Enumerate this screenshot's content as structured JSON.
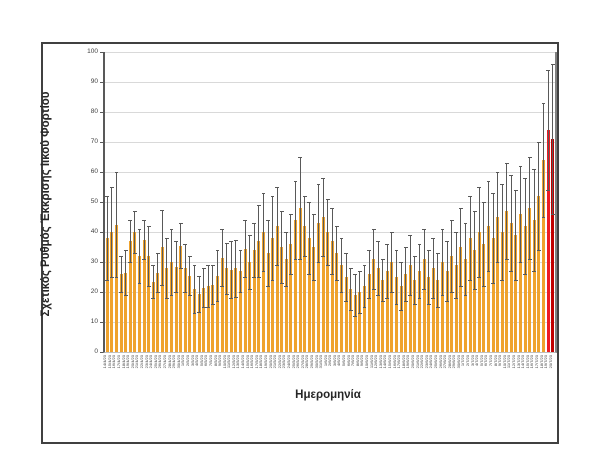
{
  "figure": {
    "background": "#ffffff",
    "border_color": "#404040"
  },
  "chart_data": {
    "type": "bar",
    "title": "",
    "xlabel": "Ημερομηνία",
    "ylabel": "Σχετικός Ρυθμός Έκκρισης Ιικού Φορτίου",
    "ylim": [
      0,
      100
    ],
    "yticks": [
      0,
      10,
      20,
      30,
      40,
      50,
      60,
      70,
      80,
      90,
      100
    ],
    "grid": true,
    "legend": "none",
    "bar_color": "#EFA32E",
    "highlight_colors": [
      "#ED1C24",
      "#C00000"
    ],
    "highlight_last_n": 2,
    "error_bar_color": "#595959",
    "gridline_color": "#d9d9d9",
    "categories": [
      "14/4/20",
      "15/4/20",
      "16/4/20",
      "17/4/20",
      "18/4/20",
      "19/4/20",
      "20/4/20",
      "21/4/20",
      "22/4/20",
      "23/4/20",
      "24/4/20",
      "25/4/20",
      "26/4/20",
      "27/4/20",
      "28/4/20",
      "29/4/20",
      "30/4/20",
      "1/5/20",
      "2/5/20",
      "3/5/20",
      "4/5/20",
      "5/5/20",
      "6/5/20",
      "7/5/20",
      "8/5/20",
      "9/5/20",
      "10/5/20",
      "11/5/20",
      "12/5/20",
      "13/5/20",
      "14/5/20",
      "15/5/20",
      "16/5/20",
      "17/5/20",
      "18/5/20",
      "19/5/20",
      "20/5/20",
      "21/5/20",
      "22/5/20",
      "23/5/20",
      "24/5/20",
      "25/5/20",
      "26/5/20",
      "27/5/20",
      "28/5/20",
      "29/5/20",
      "30/5/20",
      "31/5/20",
      "1/6/20",
      "2/6/20",
      "3/6/20",
      "4/6/20",
      "5/6/20",
      "6/6/20",
      "7/6/20",
      "8/6/20",
      "9/6/20",
      "10/6/20",
      "11/6/20",
      "12/6/20",
      "13/6/20",
      "14/6/20",
      "15/6/20",
      "16/6/20",
      "17/6/20",
      "18/6/20",
      "19/6/20",
      "20/6/20",
      "21/6/20",
      "22/6/20",
      "23/6/20",
      "24/6/20",
      "25/6/20",
      "26/6/20",
      "27/6/20",
      "28/6/20",
      "29/6/20",
      "30/6/20",
      "1/7/20",
      "2/7/20",
      "3/7/20",
      "4/7/20",
      "5/7/20",
      "6/7/20",
      "7/7/20",
      "8/7/20",
      "9/7/20",
      "10/7/20",
      "11/7/20",
      "12/7/20",
      "13/7/20",
      "14/7/20",
      "15/7/20",
      "16/7/20",
      "17/7/20",
      "18/7/20",
      "19/7/20",
      "20/7/20"
    ],
    "series": [
      {
        "name": "Σχετικός Ρυθμός Έκκρισης Ιικού Φορτίου",
        "values": [
          38,
          40,
          42.5,
          26,
          26.5,
          37,
          40,
          32,
          37.5,
          32,
          23.5,
          26.5,
          35,
          28,
          30,
          28.5,
          35.5,
          28,
          25.5,
          21,
          19.5,
          21.5,
          22,
          22.5,
          25.5,
          31.5,
          28,
          27.5,
          28,
          27,
          34.5,
          30,
          34,
          37,
          40,
          33,
          38,
          42,
          35,
          31,
          36,
          44,
          48,
          42,
          38,
          35,
          43,
          45,
          40,
          37,
          33,
          29,
          25,
          21,
          19,
          20,
          22,
          26,
          31,
          28,
          24,
          27,
          30,
          25,
          22,
          26,
          29,
          24,
          27,
          31,
          25,
          28,
          24,
          30,
          27,
          32,
          29,
          35,
          31,
          38,
          34,
          40,
          36,
          42,
          38,
          45,
          40,
          47,
          43,
          39,
          46,
          42,
          48,
          44,
          52,
          64,
          74,
          71
        ],
        "err_high": [
          52,
          55,
          60,
          32,
          34,
          44,
          47,
          41,
          44,
          42,
          29,
          33,
          47.5,
          38,
          41,
          37,
          43,
          36,
          32,
          29,
          25.5,
          28,
          29,
          29,
          34,
          41,
          36.5,
          37,
          37.5,
          34,
          44,
          39,
          43,
          49,
          53,
          44,
          52,
          55,
          47,
          40,
          46,
          57,
          65,
          52,
          50,
          46,
          56,
          58,
          51,
          48,
          42,
          38,
          33,
          28,
          26,
          27,
          29,
          34,
          41,
          37,
          31,
          36,
          40,
          34,
          30,
          35,
          39,
          32,
          36,
          41,
          34,
          38,
          33,
          41,
          37,
          44,
          40,
          48,
          43,
          52,
          47,
          55,
          50,
          57,
          53,
          60,
          56,
          63,
          59,
          54,
          62,
          58,
          65,
          61,
          70,
          83,
          94,
          96
        ]
      }
    ]
  }
}
